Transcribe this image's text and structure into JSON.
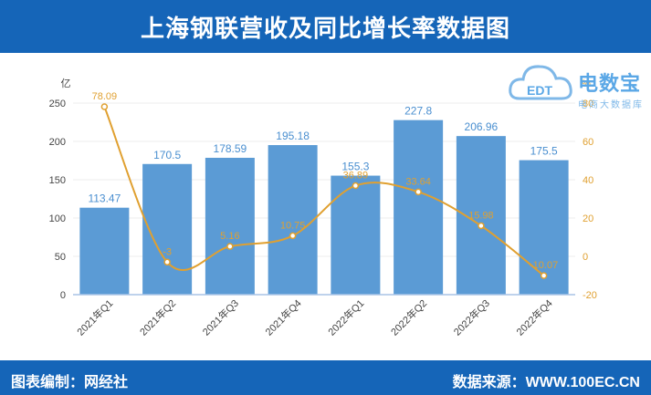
{
  "header": {
    "title": "上海钢联营收及同比增长率数据图"
  },
  "footer": {
    "editor": "图表编制：网经社",
    "source": "数据来源：WWW.100EC.CN"
  },
  "logo": {
    "main": "电数宝",
    "sub": "电商大数据库",
    "badge": "EDT"
  },
  "colors": {
    "bar": "#5b9bd5",
    "line": "#e0a030",
    "header": "#1565b8"
  },
  "chart_data": {
    "type": "bar",
    "categories": [
      "2021年Q1",
      "2021年Q2",
      "2021年Q3",
      "2021年Q4",
      "2022年Q1",
      "2022年Q2",
      "2022年Q3",
      "2022年Q4"
    ],
    "series": [
      {
        "type": "bar",
        "axis": "left",
        "values": [
          113.47,
          170.5,
          178.59,
          195.18,
          155.3,
          227.8,
          206.96,
          175.5
        ],
        "labels": [
          "113.47",
          "170.5",
          "178.59",
          "195.18",
          "155.3",
          "227.8",
          "206.96",
          "175.5"
        ]
      },
      {
        "type": "line",
        "axis": "right",
        "values": [
          78.09,
          -3,
          5.16,
          10.75,
          36.89,
          33.64,
          15.98,
          -10.07
        ],
        "labels": [
          "78.09",
          "-3",
          "5.16",
          "10.75",
          "36.89",
          "33.64",
          "15.98",
          "-10.07"
        ]
      }
    ],
    "ylabel": "亿",
    "ylabel_right": "%",
    "ylim": [
      0,
      250
    ],
    "yticks": [
      "0",
      "50",
      "100",
      "150",
      "200",
      "250"
    ],
    "ylim_right": [
      -20,
      80
    ],
    "yticks_right": [
      "-20",
      "0",
      "20",
      "40",
      "60",
      "80"
    ],
    "grid": true
  }
}
